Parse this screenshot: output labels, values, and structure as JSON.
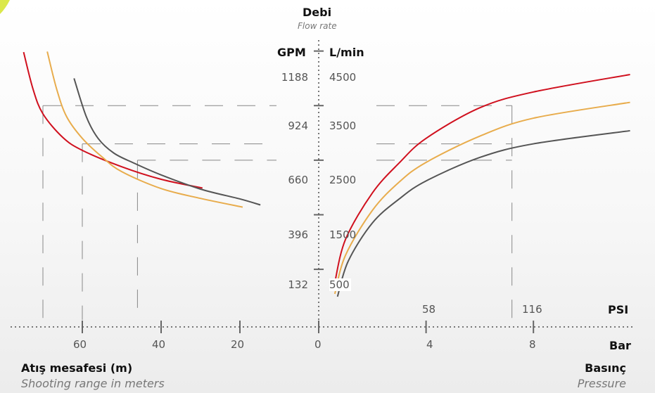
{
  "chart_data": {
    "type": "line",
    "title": "Debi",
    "subtitle": "Flow rate",
    "y_axis": {
      "left_unit": "GPM",
      "right_unit": "L/min",
      "gpm_ticks": [
        "1188",
        "924",
        "660",
        "396",
        "132"
      ],
      "lmin_ticks": [
        "4500",
        "3500",
        "2500",
        "1500",
        "500"
      ],
      "lmin_values": [
        4500,
        3500,
        2500,
        1500,
        500
      ]
    },
    "left_x_axis": {
      "label": "Atış mesafesi (m)",
      "sublabel": "Shooting range in meters",
      "ticks": [
        "60",
        "40",
        "20",
        "0"
      ],
      "tick_values": [
        60,
        40,
        20,
        0
      ]
    },
    "right_x_axis": {
      "bar_label": "Bar",
      "psi_label": "PSI",
      "label": "Basınç",
      "sublabel": "Pressure",
      "bar_ticks": [
        "4",
        "8"
      ],
      "bar_tick_values": [
        4,
        8
      ],
      "psi_ticks": [
        "58",
        "116"
      ],
      "psi_tick_values": [
        58,
        116
      ]
    },
    "range_series": [
      {
        "color": "#d0101e",
        "points": [
          [
            74.9,
            4480
          ],
          [
            72.5,
            3800
          ],
          [
            70,
            3350
          ],
          [
            65,
            2920
          ],
          [
            60,
            2680
          ],
          [
            50,
            2380
          ],
          [
            40,
            2150
          ],
          [
            29.5,
            1990
          ]
        ]
      },
      {
        "color": "#e8ac4c",
        "points": [
          [
            68.9,
            4490
          ],
          [
            66.5,
            3800
          ],
          [
            64,
            3300
          ],
          [
            60,
            2900
          ],
          [
            55,
            2560
          ],
          [
            50,
            2290
          ],
          [
            40,
            1980
          ],
          [
            30,
            1800
          ],
          [
            19.3,
            1640
          ]
        ]
      },
      {
        "color": "#555555",
        "points": [
          [
            62.1,
            4000
          ],
          [
            59,
            3300
          ],
          [
            56,
            2900
          ],
          [
            52,
            2630
          ],
          [
            47,
            2450
          ],
          [
            40,
            2230
          ],
          [
            30,
            1970
          ],
          [
            20,
            1790
          ],
          [
            14.8,
            1680
          ]
        ]
      }
    ],
    "pressure_series": [
      {
        "color": "#d0101e",
        "points": [
          [
            0.6,
            260
          ],
          [
            1,
            1050
          ],
          [
            2,
            1900
          ],
          [
            3,
            2450
          ],
          [
            4,
            2900
          ],
          [
            6,
            3460
          ],
          [
            8,
            3750
          ],
          [
            11.6,
            4070
          ]
        ]
      },
      {
        "color": "#e8ac4c",
        "points": [
          [
            0.6,
            50
          ],
          [
            1,
            760
          ],
          [
            2,
            1580
          ],
          [
            3,
            2100
          ],
          [
            4,
            2460
          ],
          [
            6,
            2940
          ],
          [
            8,
            3270
          ],
          [
            11.6,
            3560
          ]
        ]
      },
      {
        "color": "#555555",
        "points": [
          [
            0.7,
            0
          ],
          [
            1.1,
            650
          ],
          [
            2,
            1350
          ],
          [
            3,
            1790
          ],
          [
            4,
            2120
          ],
          [
            6,
            2550
          ],
          [
            8,
            2800
          ],
          [
            11.6,
            3040
          ]
        ]
      }
    ],
    "guides": {
      "range_lmin_levels": [
        3500,
        2800,
        2500
      ],
      "range_marker_meters": [
        70,
        60,
        46
      ],
      "pressure_lmin_levels": [
        3500,
        2800,
        2500
      ],
      "pressure_marker_bar": [
        7.2
      ]
    },
    "colors": {
      "red": "#d0101e",
      "orange": "#e8ac4c",
      "grey": "#555555"
    }
  }
}
